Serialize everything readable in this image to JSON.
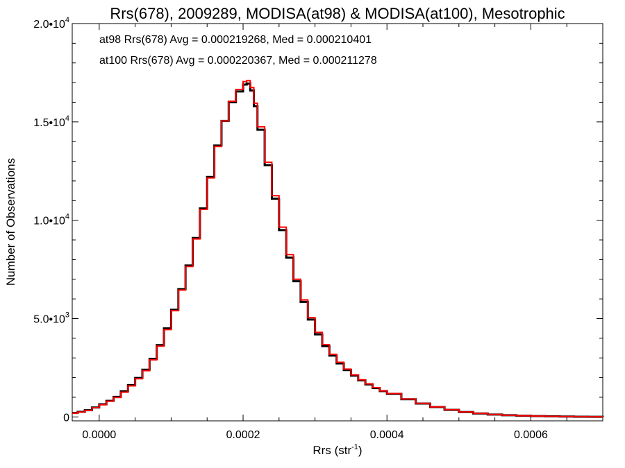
{
  "chart_data": {
    "type": "line",
    "title": "Rrs(678), 2009289, MODISA(at98) & MODISA(at100), Mesotrophic",
    "xlabel": "Rrs (str",
    "xlabel_sup": "-1",
    "xlabel_suffix": ")",
    "ylabel": "Number of Observations",
    "xlim": [
      -3.75e-05,
      0.0007
    ],
    "ylim": [
      -200,
      20000
    ],
    "grid": false,
    "x_ticks": [
      {
        "value": 0.0,
        "label": "0.0000"
      },
      {
        "value": 0.0002,
        "label": "0.0002"
      },
      {
        "value": 0.0004,
        "label": "0.0004"
      },
      {
        "value": 0.0006,
        "label": "0.0006"
      }
    ],
    "y_ticks": [
      {
        "value": 0,
        "base": "0",
        "exp": ""
      },
      {
        "value": 5000,
        "base": "5.0•10",
        "exp": "3"
      },
      {
        "value": 10000,
        "base": "1.0•10",
        "exp": "4"
      },
      {
        "value": 15000,
        "base": "1.5•10",
        "exp": "4"
      },
      {
        "value": 20000,
        "base": "2.0•10",
        "exp": "4"
      }
    ],
    "annotations": [
      {
        "text": "at98 Rrs(678) Avg = 0.000219268, Med = 0.000210401",
        "color": "#000000"
      },
      {
        "text": "at100 Rrs(678) Avg = 0.000220367, Med = 0.000211278",
        "color": "#ff0000"
      }
    ],
    "series": [
      {
        "color": "#000000",
        "x": [
          -3.75e-05,
          -3e-05,
          -2e-05,
          -1e-05,
          0.0,
          1e-05,
          2e-05,
          3e-05,
          4e-05,
          5e-05,
          6e-05,
          7e-05,
          8e-05,
          9e-05,
          0.0001,
          0.00011,
          0.00012,
          0.00013,
          0.00014,
          0.00015,
          0.00016,
          0.00017,
          0.00018,
          0.00019,
          0.0002,
          0.000205,
          0.00021,
          0.000215,
          0.00022,
          0.00023,
          0.00024,
          0.00025,
          0.00026,
          0.00027,
          0.00028,
          0.00029,
          0.0003,
          0.00031,
          0.00032,
          0.00033,
          0.00034,
          0.00035,
          0.00036,
          0.00037,
          0.00038,
          0.00039,
          0.0004,
          0.00042,
          0.00044,
          0.00046,
          0.00048,
          0.0005,
          0.00052,
          0.00054,
          0.00056,
          0.00058,
          0.0006,
          0.00062,
          0.00064,
          0.00066,
          0.00068,
          0.0007
        ],
        "y": [
          200,
          260,
          340,
          480,
          640,
          820,
          1020,
          1300,
          1620,
          1980,
          2400,
          2950,
          3650,
          4500,
          5450,
          6500,
          7700,
          9100,
          10600,
          12200,
          13800,
          15050,
          16000,
          16550,
          16900,
          16950,
          16600,
          15800,
          14600,
          12800,
          11100,
          9500,
          8100,
          6900,
          5850,
          4950,
          4200,
          3600,
          3120,
          2720,
          2380,
          2100,
          1860,
          1650,
          1470,
          1310,
          1170,
          900,
          680,
          500,
          360,
          250,
          175,
          120,
          85,
          60,
          42,
          30,
          20,
          13,
          8,
          4
        ]
      },
      {
        "color": "#ff0000",
        "x": [
          -3.75e-05,
          -3e-05,
          -2e-05,
          -1e-05,
          0.0,
          1e-05,
          2e-05,
          3e-05,
          4e-05,
          5e-05,
          6e-05,
          7e-05,
          8e-05,
          9e-05,
          0.0001,
          0.00011,
          0.00012,
          0.00013,
          0.00014,
          0.00015,
          0.00016,
          0.00017,
          0.00018,
          0.00019,
          0.0002,
          0.000205,
          0.00021,
          0.000215,
          0.00022,
          0.00023,
          0.00024,
          0.00025,
          0.00026,
          0.00027,
          0.00028,
          0.00029,
          0.0003,
          0.00031,
          0.00032,
          0.00033,
          0.00034,
          0.00035,
          0.00036,
          0.00037,
          0.00038,
          0.00039,
          0.0004,
          0.00042,
          0.00044,
          0.00046,
          0.00048,
          0.0005,
          0.00052,
          0.00054,
          0.00056,
          0.00058,
          0.0006,
          0.00062,
          0.00064,
          0.00066,
          0.00068,
          0.0007
        ],
        "y": [
          190,
          250,
          330,
          470,
          620,
          800,
          990,
          1260,
          1580,
          1940,
          2350,
          2900,
          3600,
          4440,
          5400,
          6450,
          7650,
          9050,
          10550,
          12150,
          13750,
          15050,
          16050,
          16650,
          17050,
          17100,
          16750,
          15950,
          14750,
          12950,
          11250,
          9650,
          8250,
          7000,
          5950,
          5050,
          4300,
          3680,
          3180,
          2780,
          2430,
          2140,
          1890,
          1680,
          1490,
          1330,
          1190,
          910,
          690,
          510,
          370,
          255,
          180,
          125,
          88,
          62,
          44,
          31,
          21,
          14,
          9,
          5
        ]
      }
    ]
  }
}
